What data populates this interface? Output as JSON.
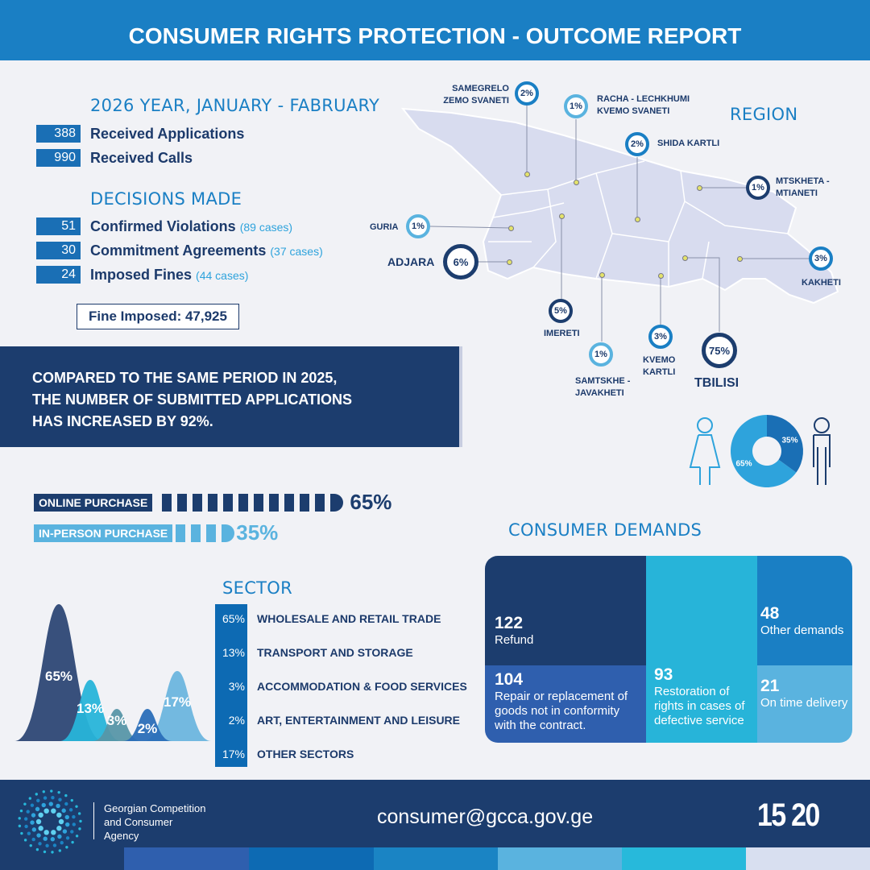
{
  "header": {
    "title": "CONSUMER RIGHTS PROTECTION - OUTCOME REPORT"
  },
  "period": {
    "title": "2026 YEAR, JANUARY - FABRUARY",
    "rows": [
      {
        "value": "388",
        "label": "Received Applications"
      },
      {
        "value": "990",
        "label": "Received Calls"
      }
    ]
  },
  "decisions": {
    "title": "DECISIONS MADE",
    "rows": [
      {
        "value": "51",
        "label": "Confirmed Violations",
        "note": "(89 cases)"
      },
      {
        "value": "30",
        "label": "Commitment Agreements",
        "note": "(37 cases)"
      },
      {
        "value": "24",
        "label": "Imposed Fines",
        "note": "(44  cases)"
      }
    ],
    "fine": "Fine Imposed: 47,925"
  },
  "banner": {
    "lines": [
      "COMPARED TO THE SAME PERIOD IN 2025,",
      "THE NUMBER OF SUBMITTED APPLICATIONS",
      "HAS INCREASED BY 92%."
    ]
  },
  "region": {
    "title": "REGION"
  },
  "purchase": {
    "online_label": "ONLINE PURCHASE",
    "online_value": "65%",
    "inperson_label": "IN-PERSON PURCHASE",
    "inperson_value": "35%"
  },
  "demands": {
    "title": "CONSUMER DEMANDS"
  },
  "sector": {
    "title": "SECTOR"
  },
  "footer": {
    "org_lines": [
      "Georgian Competition",
      "and Consumer",
      "Agency"
    ],
    "email": "consumer@gcca.gov.ge",
    "hotline": "15 20"
  },
  "colors": {
    "navy": "#1c3d6e",
    "blue": "#1a7fc4",
    "cyan": "#27b4d9",
    "light": "#5ab3df"
  },
  "chart_data": [
    {
      "type": "map",
      "title": "REGION",
      "regions": [
        {
          "name": "SAMEGRELO ZEMO SVANETI",
          "label": [
            "SAMEGRELO",
            "ZEMO SVANETI"
          ],
          "value": "2%"
        },
        {
          "name": "RACHA - LECHKHUMI KVEMO SVANETI",
          "label": [
            "RACHA - LECHKHUMI",
            "KVEMO SVANETI"
          ],
          "value": "1%"
        },
        {
          "name": "SHIDA KARTLI",
          "label": [
            "SHIDA KARTLI"
          ],
          "value": "2%"
        },
        {
          "name": "MTSKHETA - MTIANETI",
          "label": [
            "MTSKHETA -",
            "MTIANETI"
          ],
          "value": "1%"
        },
        {
          "name": "GURIA",
          "label": [
            "GURIA"
          ],
          "value": "1%"
        },
        {
          "name": "ADJARA",
          "label": [
            "ADJARA"
          ],
          "value": "6%"
        },
        {
          "name": "IMERETI",
          "label": [
            "IMERETI"
          ],
          "value": "5%"
        },
        {
          "name": "SAMTSKHE - JAVAKHETI",
          "label": [
            "SAMTSKHE -",
            "JAVAKHETI"
          ],
          "value": "1%"
        },
        {
          "name": "KVEMO KARTLI",
          "label": [
            "KVEMO",
            "KARTLI"
          ],
          "value": "3%"
        },
        {
          "name": "TBILISI",
          "label": [
            "TBILISI"
          ],
          "value": "75%"
        },
        {
          "name": "KAKHETI",
          "label": [
            "KAKHETI"
          ],
          "value": "3%"
        }
      ]
    },
    {
      "type": "pie",
      "title": "Gender",
      "categories": [
        "Female",
        "Male"
      ],
      "values": [
        65,
        35
      ],
      "labels": [
        "65%",
        "35%"
      ]
    },
    {
      "type": "bar",
      "title": "Purchase type",
      "categories": [
        "ONLINE PURCHASE",
        "IN-PERSON PURCHASE"
      ],
      "values": [
        65,
        35
      ]
    },
    {
      "type": "area",
      "title": "SECTOR",
      "categories": [
        "WHOLESALE AND RETAIL TRADE",
        "TRANSPORT AND STORAGE",
        "ACCOMMODATION & FOOD SERVICES",
        "ART, ENTERTAINMENT AND LEISURE",
        "OTHER SECTORS"
      ],
      "values": [
        65,
        13,
        3,
        2,
        17
      ],
      "labels": [
        "65%",
        "13%",
        "3%",
        "2%",
        "17%"
      ]
    },
    {
      "type": "treemap",
      "title": "CONSUMER DEMANDS",
      "items": [
        {
          "value": "122",
          "label": "Refund"
        },
        {
          "value": "104",
          "label": "Repair or replacement of goods not in conformity with the contract."
        },
        {
          "value": "93",
          "label": "Restoration of rights in cases of defective service"
        },
        {
          "value": "48",
          "label": "Other demands"
        },
        {
          "value": "21",
          "label": "On time delivery"
        }
      ]
    }
  ]
}
